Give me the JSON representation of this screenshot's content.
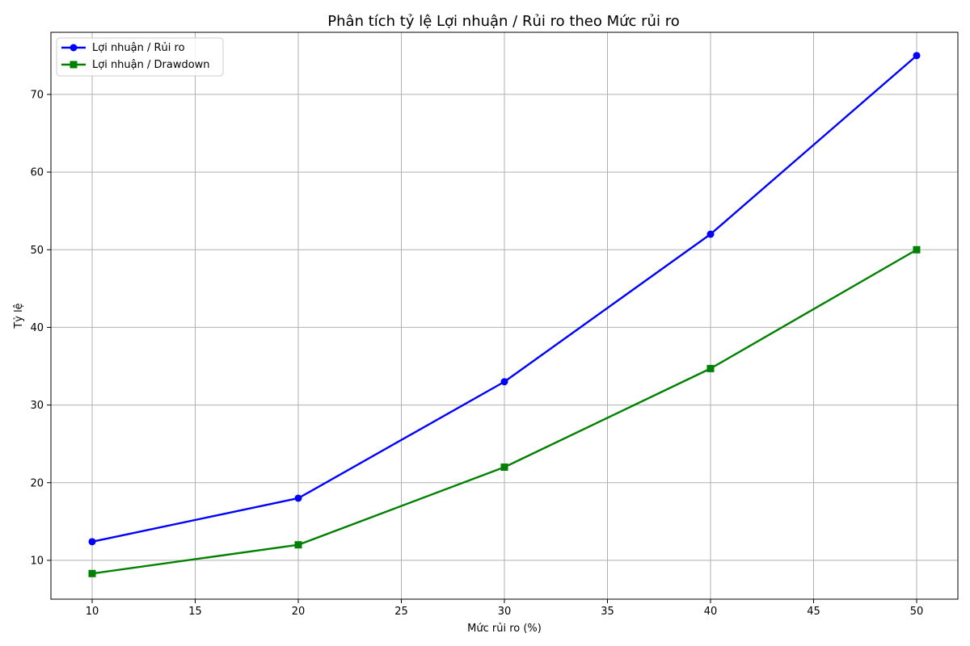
{
  "chart_data": {
    "type": "line",
    "title": "Phân tích tỷ lệ Lợi nhuận / Rủi ro theo Mức rủi ro",
    "xlabel": "Mức rủi ro (%)",
    "ylabel": "Tỷ lệ",
    "x": [
      10,
      20,
      30,
      40,
      50
    ],
    "xlim": [
      8,
      52
    ],
    "ylim": [
      5,
      78
    ],
    "xticks": [
      10,
      15,
      20,
      25,
      30,
      35,
      40,
      45,
      50
    ],
    "yticks": [
      10,
      20,
      30,
      40,
      50,
      60,
      70
    ],
    "grid": true,
    "legend_position": "top-left",
    "series": [
      {
        "name": "Lợi nhuận / Rủi ro",
        "values": [
          12.4,
          18.0,
          33.0,
          52.0,
          75.0
        ],
        "color": "#0000ff",
        "marker": "circle"
      },
      {
        "name": "Lợi nhuận / Drawdown",
        "values": [
          8.3,
          12.0,
          22.0,
          34.7,
          50.0
        ],
        "color": "#008000",
        "marker": "square"
      }
    ]
  }
}
